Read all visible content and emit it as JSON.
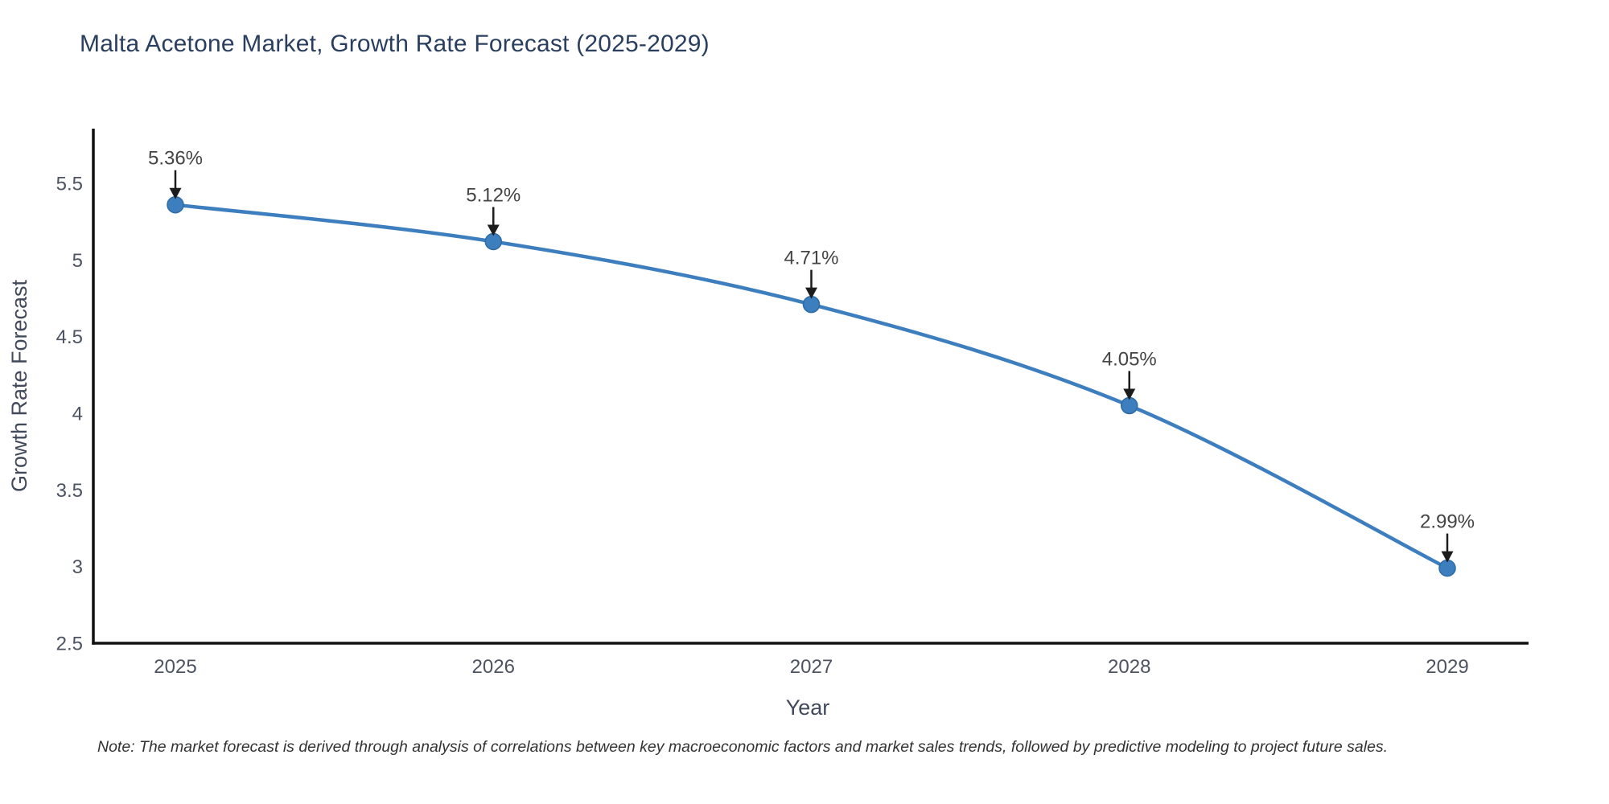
{
  "chart_data": {
    "type": "line",
    "title": "Malta Acetone Market, Growth Rate Forecast (2025-2029)",
    "x": [
      "2025",
      "2026",
      "2027",
      "2028",
      "2029"
    ],
    "values": [
      5.36,
      5.12,
      4.71,
      4.05,
      2.99
    ],
    "point_labels": [
      "5.36%",
      "5.12%",
      "4.71%",
      "4.05%",
      "2.99%"
    ],
    "xlabel": "Year",
    "ylabel": "Growth Rate Forecast",
    "ytick_labels": [
      "2.5",
      "3",
      "3.5",
      "4",
      "4.5",
      "5",
      "5.5"
    ],
    "yticks": [
      2.5,
      3,
      3.5,
      4,
      4.5,
      5,
      5.5
    ],
    "ylim": [
      2.5,
      5.5
    ],
    "grid": false,
    "legend": "none",
    "line_shape": "spline",
    "colors": {
      "line": "#3d7ebf",
      "marker": "#3d7ebf",
      "marker_edge": "#2d6ba3",
      "spine": "#111111",
      "arrow": "#1c1c1c",
      "title_text": "#2a3f5f",
      "axis_text": "#42495b",
      "tick_text": "#4d5360",
      "annotation_text": "#444444"
    }
  },
  "note": {
    "text": "Note: The market forecast is derived through analysis of correlations between key macroeconomic factors and market sales trends, followed by predictive modeling to project future sales."
  }
}
